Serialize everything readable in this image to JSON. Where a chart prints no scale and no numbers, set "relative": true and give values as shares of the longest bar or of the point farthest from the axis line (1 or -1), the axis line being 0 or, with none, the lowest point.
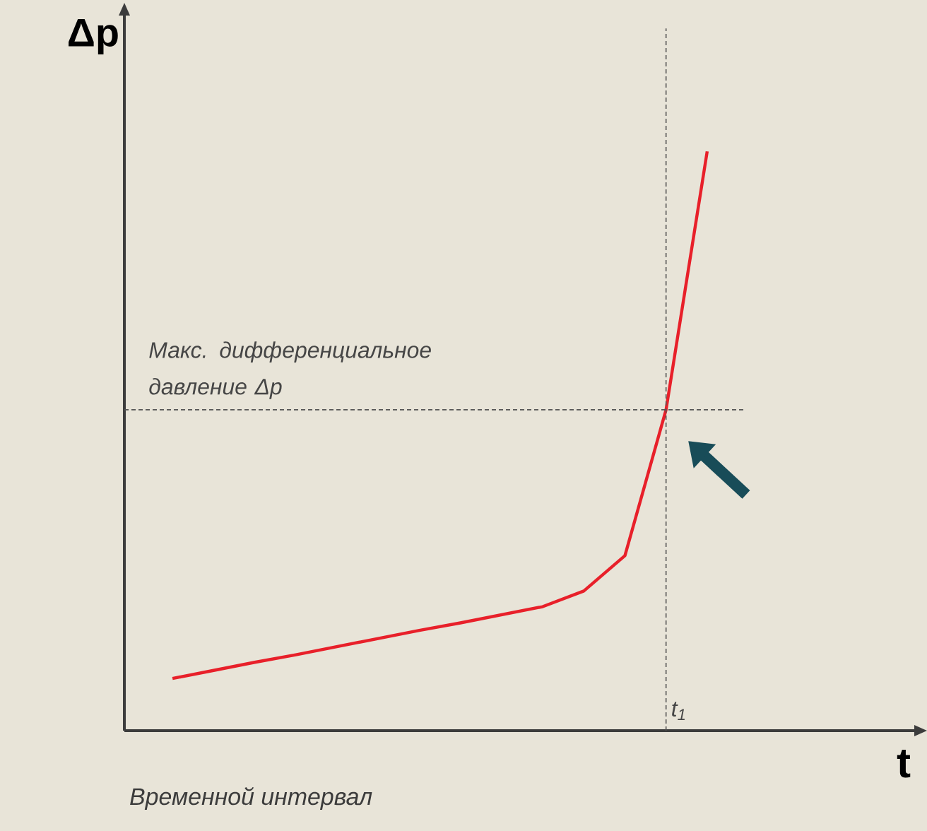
{
  "chart_data": {
    "type": "line",
    "relative": true,
    "ylabel": "Δp",
    "xlabel": "t",
    "color": "#e8202a",
    "categories": [
      null,
      null,
      null,
      null,
      null,
      null,
      null,
      null,
      null,
      null,
      null,
      null,
      null,
      null
    ],
    "values": [
      0.09,
      0.104,
      0.118,
      0.131,
      0.145,
      0.159,
      0.173,
      0.186,
      0.2,
      0.214,
      0.241,
      0.302,
      0.554,
      1.0
    ],
    "ref_lines": [
      {
        "axis": "y",
        "value": 0.554,
        "label": "Макс. дифференциальное давление Δp",
        "color": "#555555",
        "line_style": "dashed"
      }
    ],
    "annotations": [
      "Временной интервал",
      "t$_{1}$"
    ]
  }
}
